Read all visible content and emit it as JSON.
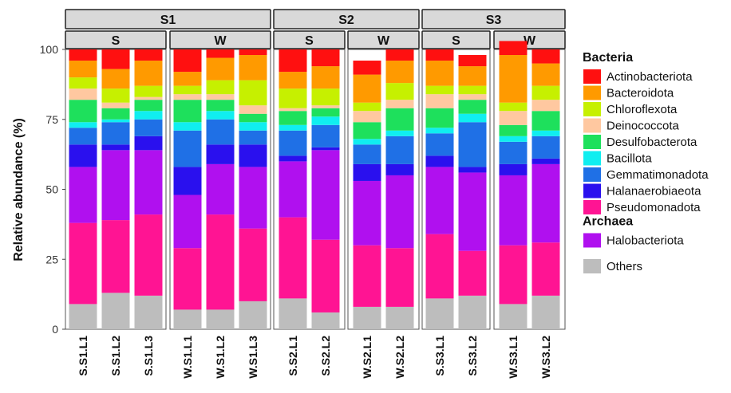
{
  "chart_data": {
    "type": "bar",
    "stacked": true,
    "ylabel": "Relative abundance (%)",
    "xlabel": "",
    "ylim": [
      0,
      100
    ],
    "yticks": [
      0,
      25,
      50,
      75,
      100
    ],
    "sites": [
      "S1",
      "S2",
      "S3"
    ],
    "facets": [
      {
        "site": "S1",
        "season": "S",
        "samples": [
          "S.S1.L1",
          "S.S1.L2",
          "S.S1.L3"
        ]
      },
      {
        "site": "S1",
        "season": "W",
        "samples": [
          "W.S1.L1",
          "W.S1.L2",
          "W.S1.L3"
        ]
      },
      {
        "site": "S2",
        "season": "S",
        "samples": [
          "S.S2.L1",
          "S.S2.L2"
        ]
      },
      {
        "site": "S2",
        "season": "W",
        "samples": [
          "W.S2.L1",
          "W.S2.L2"
        ]
      },
      {
        "site": "S3",
        "season": "S",
        "samples": [
          "S.S3.L1",
          "S.S3.L2"
        ]
      },
      {
        "site": "S3",
        "season": "W",
        "samples": [
          "W.S3.L1",
          "W.S3.L2"
        ]
      }
    ],
    "categories": [
      "S.S1.L1",
      "S.S1.L2",
      "S.S1.L3",
      "W.S1.L1",
      "W.S1.L2",
      "W.S1.L3",
      "S.S2.L1",
      "S.S2.L2",
      "W.S2.L1",
      "W.S2.L2",
      "S.S3.L1",
      "S.S3.L2",
      "W.S3.L1",
      "W.S3.L2"
    ],
    "legend_groups": [
      {
        "title": "Bacteria",
        "items": [
          "Actinobacteriota",
          "Bacteroidota",
          "Chloroflexota",
          "Deinococcota",
          "Desulfobacterota",
          "Bacillota",
          "Gemmatimonadota",
          "Halanaerobiaeota",
          "Pseudomonadota"
        ]
      },
      {
        "title": "Archaea",
        "items": [
          "Halobacteriota"
        ]
      },
      {
        "title": "",
        "items": [
          "Others"
        ]
      }
    ],
    "series": [
      {
        "name": "Others",
        "color": "#bdbdbd",
        "values": [
          9,
          13,
          12,
          7,
          7,
          10,
          11,
          6,
          8,
          8,
          11,
          12,
          9,
          12
        ]
      },
      {
        "name": "Pseudomonadota",
        "color": "#ff1493",
        "values": [
          29,
          26,
          29,
          22,
          34,
          26,
          29,
          26,
          22,
          21,
          23,
          16,
          21,
          19
        ]
      },
      {
        "name": "Halobacteriota",
        "color": "#b010ef",
        "values": [
          20,
          25,
          23,
          19,
          18,
          22,
          20,
          32,
          23,
          26,
          24,
          28,
          25,
          28
        ]
      },
      {
        "name": "Halanaerobiaeota",
        "color": "#2a10ee",
        "values": [
          8,
          2,
          5,
          10,
          7,
          8,
          2,
          1,
          6,
          4,
          4,
          2,
          4,
          2
        ]
      },
      {
        "name": "Gemmatimonadota",
        "color": "#1f70e6",
        "values": [
          6,
          8,
          6,
          13,
          9,
          5,
          9,
          8,
          7,
          10,
          8,
          16,
          8,
          8
        ]
      },
      {
        "name": "Bacillota",
        "color": "#10eef0",
        "values": [
          2,
          1,
          3,
          3,
          3,
          3,
          2,
          3,
          2,
          2,
          2,
          3,
          2,
          2
        ]
      },
      {
        "name": "Desulfobacterota",
        "color": "#1ee05c",
        "values": [
          8,
          4,
          4,
          8,
          4,
          3,
          5,
          3,
          6,
          8,
          7,
          5,
          4,
          7
        ]
      },
      {
        "name": "Deinococcota",
        "color": "#ffc8a0",
        "values": [
          4,
          2,
          1,
          2,
          2,
          3,
          1,
          1,
          4,
          3,
          5,
          2,
          5,
          4
        ]
      },
      {
        "name": "Chloroflexota",
        "color": "#c6f000",
        "values": [
          4,
          5,
          4,
          3,
          5,
          9,
          7,
          6,
          3,
          6,
          3,
          3,
          3,
          5
        ]
      },
      {
        "name": "Bacteroidota",
        "color": "#ff9a00",
        "values": [
          6,
          7,
          9,
          5,
          8,
          9,
          6,
          8,
          10,
          8,
          9,
          7,
          17,
          8
        ]
      },
      {
        "name": "Actinobacteriota",
        "color": "#ff1010",
        "values": [
          4,
          7,
          4,
          8,
          3,
          2,
          8,
          6,
          5,
          4,
          4,
          4,
          5,
          5
        ]
      }
    ]
  }
}
